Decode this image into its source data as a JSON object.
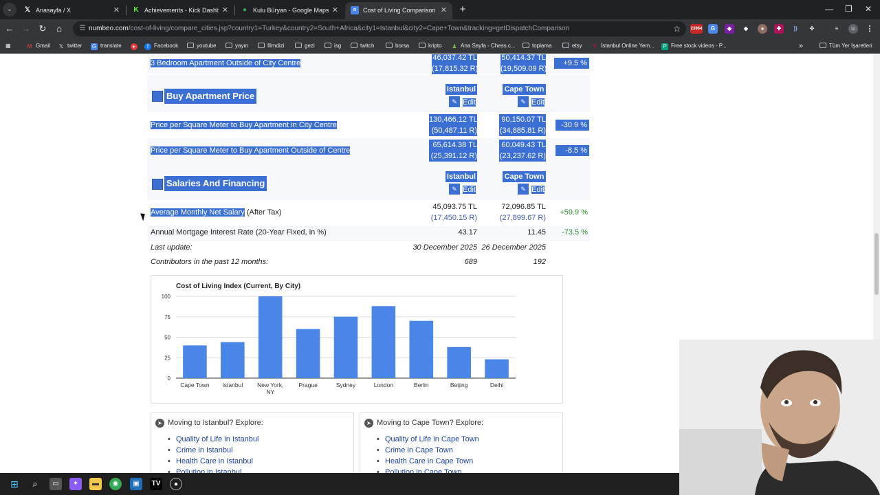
{
  "browser": {
    "tabs": [
      {
        "title": "Anasayfa / X",
        "icon": "x-logo-icon",
        "active": false
      },
      {
        "title": "Achievements - Kick Dashboard",
        "icon": "kick-logo-icon",
        "active": false
      },
      {
        "title": "Kulu Büryan - Google Maps",
        "icon": "maps-pin-icon",
        "active": false
      },
      {
        "title": "Cost of Living Comparison Betw",
        "icon": "numbeo-icon",
        "active": true
      }
    ],
    "url_host": "numbeo.com",
    "url_path": "/cost-of-living/compare_cities.jsp?country1=Turkey&country2=South+Africa&city1=Istanbul&city2=Cape+Town&tracking=getDispatchComparison",
    "extension_badge": "23964",
    "bookmarks": [
      "Gmail",
      "twitter",
      "translate",
      "Facebook",
      "youtube",
      "yayın",
      "filmdizi",
      "gezi",
      "isg",
      "twitch",
      "borsa",
      "kripto",
      "Ana Sayfa - Chess.c...",
      "toplama",
      "etsy",
      "İstanbul Online Yem...",
      "Free stock videos - P..."
    ],
    "bookmarks_more": "»",
    "all_bookmarks": "Tüm Yer İşaretleri"
  },
  "rent_row": {
    "label": "3 Bedroom Apartment Outside of City Centre",
    "city1_tl": "46,037.42 TL",
    "city1_r": "(17,815.32 R)",
    "city2_tl": "50,414.37 TL",
    "city2_r": "(19,509.09 R)",
    "diff": "+9.5 %"
  },
  "buy_section": {
    "title": "Buy Apartment Price",
    "city1": "Istanbul",
    "city2": "Cape Town",
    "edit": "Edit",
    "rows": [
      {
        "label": "Price per Square Meter to Buy Apartment in City Centre",
        "c1_tl": "130,466.12 TL",
        "c1_r": "(50,487.11 R)",
        "c2_tl": "90,150.07 TL",
        "c2_r": "(34,885.81 R)",
        "diff": "-30.9 %"
      },
      {
        "label": "Price per Square Meter to Buy Apartment Outside of Centre",
        "c1_tl": "65,614.38 TL",
        "c1_r": "(25,391.12 R)",
        "c2_tl": "60,049.43 TL",
        "c2_r": "(23,237.62 R)",
        "diff": "-8.5 %"
      }
    ]
  },
  "salary_section": {
    "title": "Salaries And Financing",
    "city1": "Istanbul",
    "city2": "Cape Town",
    "edit": "Edit",
    "salary_label_selected": "Average Monthly Net Salary",
    "salary_label_rest": " (After Tax)",
    "salary_c1_tl": "45,093.75 TL",
    "salary_c1_r": "(17,450.15 R)",
    "salary_c2_tl": "72,096.85 TL",
    "salary_c2_r": "(27,899.67 R)",
    "salary_diff": "+59.9 %",
    "mortgage_label": "Annual Mortgage Interest Rate (20-Year Fixed, in %)",
    "mortgage_c1": "43.17",
    "mortgage_c2": "11.45",
    "mortgage_diff": "-73.5 %",
    "last_update_label": "Last update:",
    "last_update_c1": "30 December 2025",
    "last_update_c2": "26 December 2025",
    "contributors_label": "Contributors in the past 12 months:",
    "contributors_c1": "689",
    "contributors_c2": "192"
  },
  "chart_data": {
    "type": "bar",
    "title": "Cost of Living Index (Current, By City)",
    "categories": [
      "Cape Town",
      "Istanbul",
      "New York, NY",
      "Prague",
      "Sydney",
      "London",
      "Berlin",
      "Beijing",
      "Delhi"
    ],
    "category_lines": [
      [
        "Cape Town"
      ],
      [
        "Istanbul"
      ],
      [
        "New York,",
        "NY"
      ],
      [
        "Prague"
      ],
      [
        "Sydney"
      ],
      [
        "London"
      ],
      [
        "Berlin"
      ],
      [
        "Beijing"
      ],
      [
        "Delhi"
      ]
    ],
    "values": [
      40,
      44,
      100,
      60,
      75,
      88,
      70,
      38,
      23
    ],
    "ylim": [
      0,
      100
    ],
    "yticks": [
      0,
      25,
      50,
      75,
      100
    ],
    "bar_color": "#4a86e8",
    "grid": true
  },
  "explore": [
    {
      "heading": "Moving to Istanbul? Explore:",
      "links": [
        "Quality of Life in Istanbul",
        "Crime in Istanbul",
        "Health Care in Istanbul",
        "Pollution in Istanbul"
      ]
    },
    {
      "heading": "Moving to Cape Town? Explore:",
      "links": [
        "Quality of Life in Cape Town",
        "Crime in Cape Town",
        "Health Care in Cape Town",
        "Pollution in Cape Town"
      ]
    }
  ],
  "colors": {
    "selection": "#3b6fd4",
    "positive": "#2e8b2e",
    "link": "#1a3fa3"
  }
}
